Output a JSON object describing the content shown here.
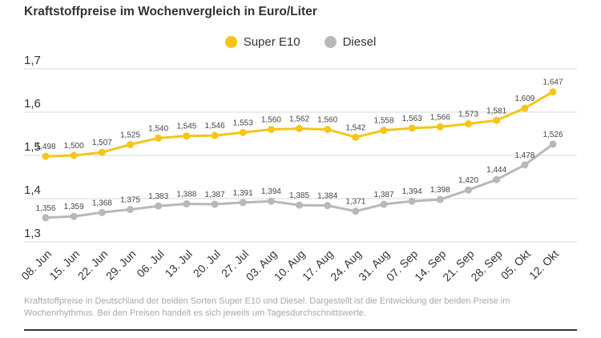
{
  "chart_data": {
    "type": "line",
    "title": "Kraftstoffpreise im Wochenvergleich in Euro/Liter",
    "xlabel": "",
    "ylabel": "",
    "ylim": [
      1.3,
      1.7
    ],
    "yticks": [
      "1,7",
      "1,6",
      "1,5",
      "1,4",
      "1,3"
    ],
    "ytick_values": [
      1.7,
      1.6,
      1.5,
      1.4,
      1.3
    ],
    "categories": [
      "08. Jun",
      "15. Jun",
      "22. Jun",
      "29. Jun",
      "06. Jul",
      "13. Jul",
      "20. Jul",
      "27. Jul",
      "03. Aug",
      "10. Aug",
      "17. Aug",
      "24. Aug",
      "31. Aug",
      "07. Sep",
      "14. Sep",
      "21. Sep",
      "28. Sep",
      "05. Okt",
      "12. Okt"
    ],
    "series": [
      {
        "name": "Super E10",
        "color": "#f5c518",
        "values": [
          1.498,
          1.5,
          1.507,
          1.525,
          1.54,
          1.545,
          1.546,
          1.553,
          1.56,
          1.562,
          1.56,
          1.542,
          1.558,
          1.563,
          1.566,
          1.573,
          1.581,
          1.609,
          1.647
        ],
        "labels": [
          "1,498",
          "1,500",
          "1,507",
          "1,525",
          "1,540",
          "1,545",
          "1,546",
          "1,553",
          "1,560",
          "1,562",
          "1,560",
          "1,542",
          "1,558",
          "1,563",
          "1,566",
          "1,573",
          "1,581",
          "1,609",
          "1,647"
        ]
      },
      {
        "name": "Diesel",
        "color": "#b8b8b8",
        "values": [
          1.356,
          1.359,
          1.368,
          1.375,
          1.383,
          1.388,
          1.387,
          1.391,
          1.394,
          1.385,
          1.384,
          1.371,
          1.387,
          1.394,
          1.398,
          1.42,
          1.444,
          1.478,
          1.526
        ],
        "labels": [
          "1,356",
          "1,359",
          "1,368",
          "1,375",
          "1,383",
          "1,388",
          "1,387",
          "1,391",
          "1,394",
          "1,385",
          "1,384",
          "1,371",
          "1,387",
          "1,394",
          "1,398",
          "1,420",
          "1,444",
          "1,478",
          "1,526"
        ]
      }
    ],
    "legend_position": "top-center",
    "grid": true
  },
  "note": "Kraftstoffpreise in Deutschland der beiden Sorten Super E10 und Diesel. Dargestellt ist die Entwicklung der beiden Preise im Wochenrhythmus. Bei den Preisen handelt es sich jeweils um Tagesdurchschnittswerte."
}
